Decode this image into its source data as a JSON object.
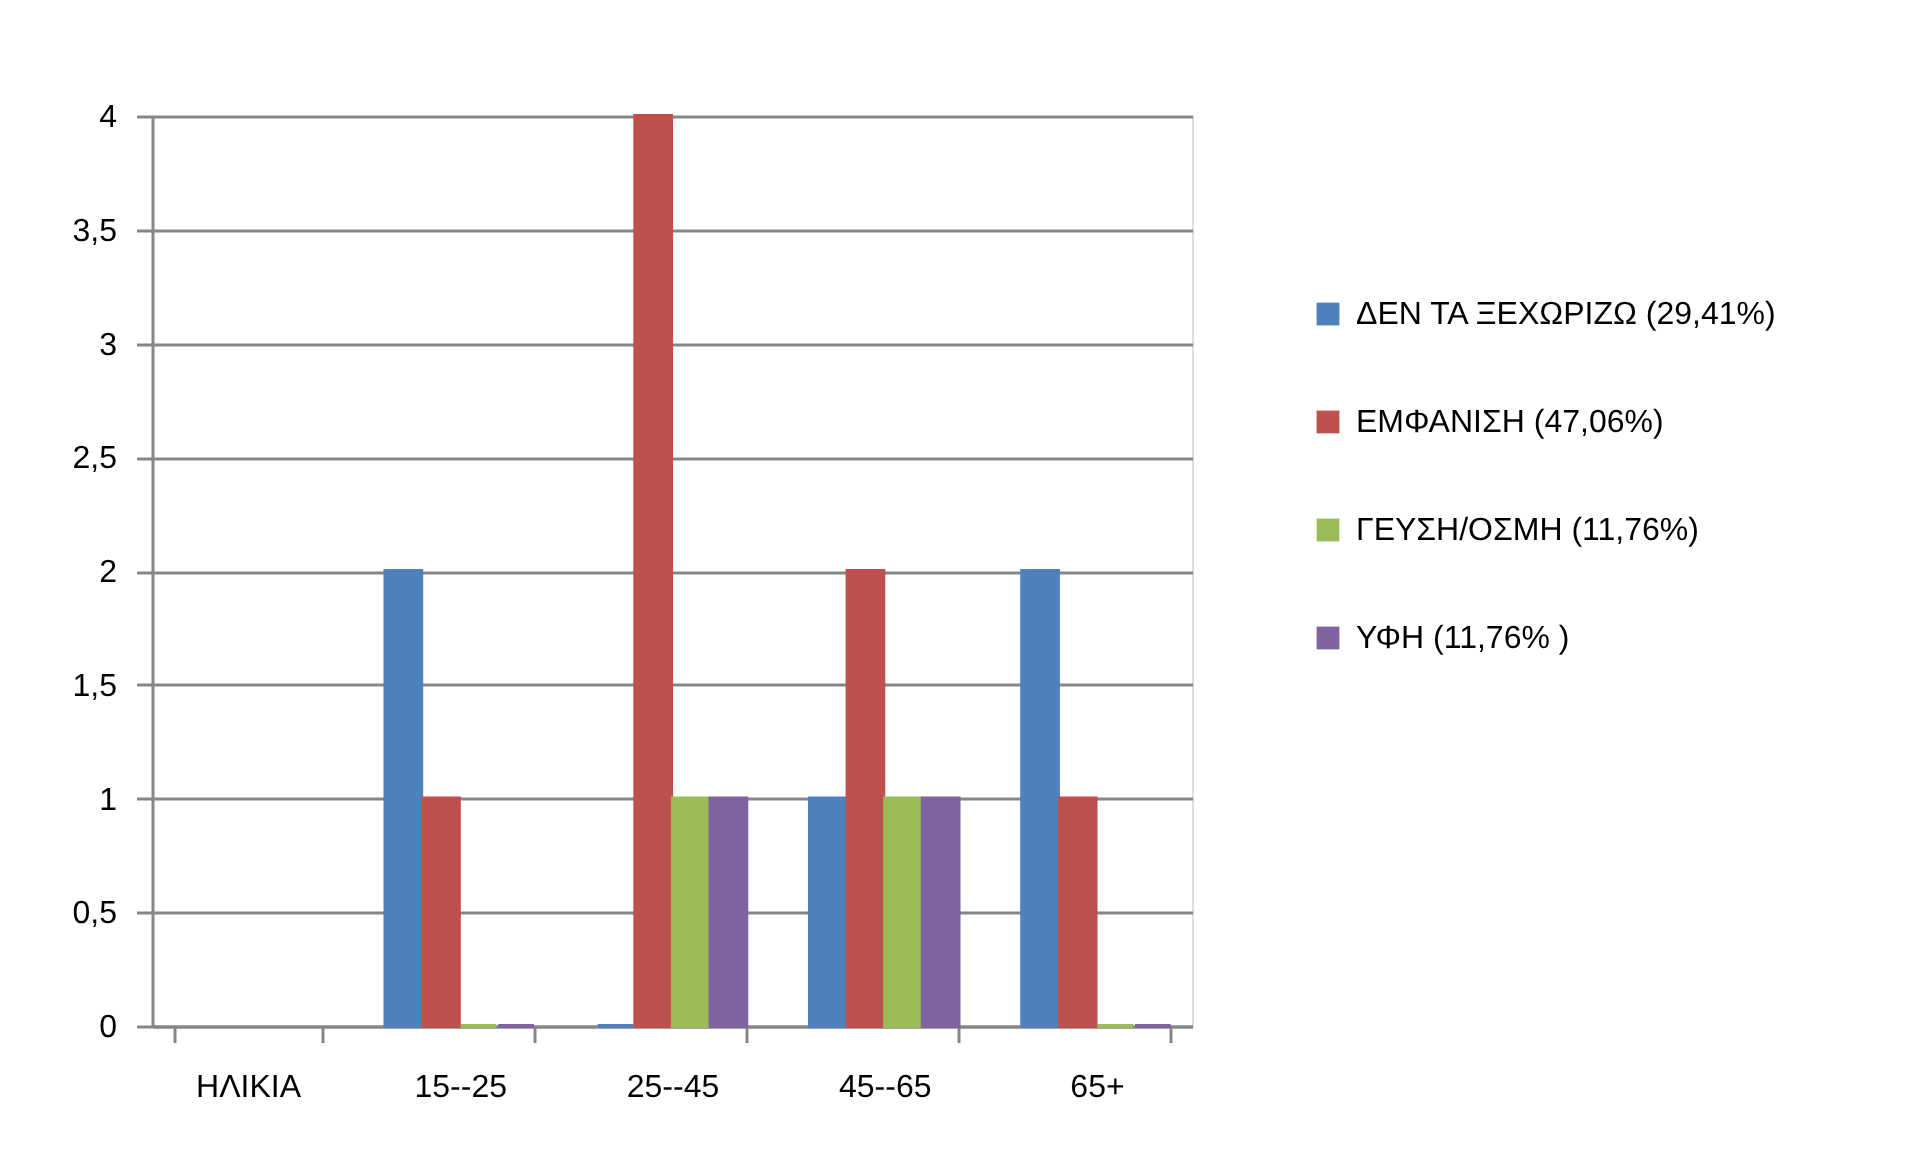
{
  "chart_data": {
    "type": "bar",
    "categories": [
      "ΗΛΙΚΙΑ",
      "15--25",
      "25--45",
      "45--65",
      "65+"
    ],
    "series": [
      {
        "name": "ΔΕΝ ΤΑ ΞΕΧΩΡΙΖΩ (29,41%)",
        "color": "#4f81bd",
        "values": [
          null,
          2,
          0,
          1,
          2
        ]
      },
      {
        "name": "ΕΜΦΑΝΙΣΗ (47,06%)",
        "color": "#c0504d",
        "values": [
          null,
          1,
          4,
          2,
          1
        ]
      },
      {
        "name": "ΓΕΥΣΗ/ΟΣΜΗ (11,76%)",
        "color": "#9bbb59",
        "values": [
          null,
          0,
          1,
          1,
          0
        ]
      },
      {
        "name": "ΥΦΗ (11,76% )",
        "color": "#8064a2",
        "values": [
          null,
          0,
          1,
          1,
          0
        ]
      }
    ],
    "ylim": [
      0,
      4
    ],
    "yticks": [
      0,
      {
        "value": 0.5,
        "label": "0,5"
      },
      1,
      {
        "value": 1.5,
        "label": "1,5"
      },
      2,
      {
        "value": 2.5,
        "label": "2,5"
      },
      3,
      {
        "value": 3.5,
        "label": "3,5"
      },
      4
    ],
    "grid": "y",
    "legend": "right"
  }
}
